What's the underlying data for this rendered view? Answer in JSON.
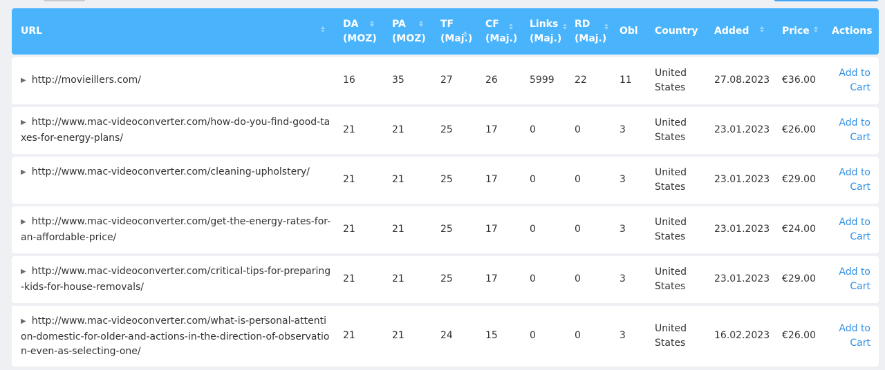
{
  "header": {
    "url": "URL",
    "da": "DA\n(MOZ)",
    "pa": "PA\n(MOZ)",
    "tf": "TF\n(Maj.)",
    "cf": "CF\n(Maj.)",
    "links": "Links\n(Maj.)",
    "rd": "RD\n(Maj.)",
    "obl": "Obl",
    "country": "Country",
    "added": "Added",
    "price": "Price",
    "actions": "Actions"
  },
  "rows": [
    {
      "url": "http://movieillers.com/",
      "da": "16",
      "pa": "35",
      "tf": "27",
      "cf": "26",
      "links": "5999",
      "rd": "22",
      "obl": "11",
      "country1": "United",
      "country2": "States",
      "added": "27.08.2023",
      "price": "€36.00",
      "action1": "Add to",
      "action2": "Cart"
    },
    {
      "url": "http://www.mac-videoconverter.com/how-do-you-find-good-taxes-for-energy-plans/",
      "da": "21",
      "pa": "21",
      "tf": "25",
      "cf": "17",
      "links": "0",
      "rd": "0",
      "obl": "3",
      "country1": "United",
      "country2": "States",
      "added": "23.01.2023",
      "price": "€26.00",
      "action1": "Add to",
      "action2": "Cart"
    },
    {
      "url": "http://www.mac-videoconverter.com/cleaning-upholstery/",
      "da": "21",
      "pa": "21",
      "tf": "25",
      "cf": "17",
      "links": "0",
      "rd": "0",
      "obl": "3",
      "country1": "United",
      "country2": "States",
      "added": "23.01.2023",
      "price": "€29.00",
      "action1": "Add to",
      "action2": "Cart"
    },
    {
      "url": "http://www.mac-videoconverter.com/get-the-energy-rates-for-an-affordable-price/",
      "da": "21",
      "pa": "21",
      "tf": "25",
      "cf": "17",
      "links": "0",
      "rd": "0",
      "obl": "3",
      "country1": "United",
      "country2": "States",
      "added": "23.01.2023",
      "price": "€24.00",
      "action1": "Add to",
      "action2": "Cart"
    },
    {
      "url": "http://www.mac-videoconverter.com/critical-tips-for-preparing-kids-for-house-removals/",
      "da": "21",
      "pa": "21",
      "tf": "25",
      "cf": "17",
      "links": "0",
      "rd": "0",
      "obl": "3",
      "country1": "United",
      "country2": "States",
      "added": "23.01.2023",
      "price": "€29.00",
      "action1": "Add to",
      "action2": "Cart"
    },
    {
      "url": "http://www.mac-videoconverter.com/what-is-personal-attention-domestic-for-older-and-actions-in-the-direction-of-observation-even-as-selecting-one/",
      "da": "21",
      "pa": "21",
      "tf": "24",
      "cf": "15",
      "links": "0",
      "rd": "0",
      "obl": "3",
      "country1": "United",
      "country2": "States",
      "added": "16.02.2023",
      "price": "€26.00",
      "action1": "Add to",
      "action2": "Cart"
    }
  ],
  "icons": {
    "row_expand": "caret-right-icon",
    "sort": "sort-arrows-icon"
  },
  "colors": {
    "header_bg": "#49b3fb",
    "link": "#2f8fe6"
  }
}
